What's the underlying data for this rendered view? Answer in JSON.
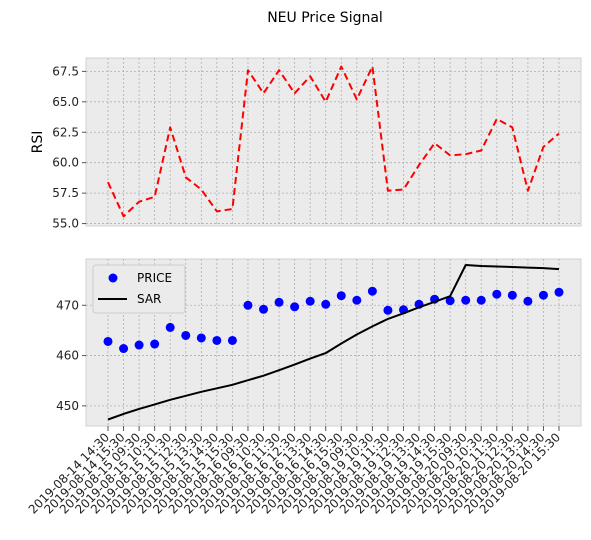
{
  "chart_data": {
    "type": "line",
    "title": "NEU Price Signal",
    "style": {
      "panel_bg": "#ebebeb",
      "grid_color": "#b0b0b0",
      "grid_style": "dotted"
    },
    "x_labels": [
      "2019-08-14 14:30",
      "2019-08-14 15:30",
      "2019-08-15 09:30",
      "2019-08-15 10:30",
      "2019-08-15 11:30",
      "2019-08-15 12:30",
      "2019-08-15 13:30",
      "2019-08-15 14:30",
      "2019-08-15 15:30",
      "2019-08-16 09:30",
      "2019-08-16 10:30",
      "2019-08-16 11:30",
      "2019-08-16 12:30",
      "2019-08-16 13:30",
      "2019-08-16 14:30",
      "2019-08-16 15:30",
      "2019-08-19 09:30",
      "2019-08-19 10:30",
      "2019-08-19 11:30",
      "2019-08-19 12:30",
      "2019-08-19 13:30",
      "2019-08-19 14:30",
      "2019-08-19 15:30",
      "2019-08-20 09:30",
      "2019-08-20 10:30",
      "2019-08-20 11:30",
      "2019-08-20 12:30",
      "2019-08-20 13:30",
      "2019-08-20 14:30",
      "2019-08-20 15:30"
    ],
    "panels": [
      {
        "ylabel": "RSI",
        "ylim": [
          54.8,
          68.6
        ],
        "yticks": [
          55.0,
          57.5,
          60.0,
          62.5,
          65.0,
          67.5
        ],
        "ytick_labels": [
          "55.0",
          "57.5",
          "60.0",
          "62.5",
          "65.0",
          "67.5"
        ],
        "grid": true,
        "legend": null,
        "series": [
          {
            "type": "line",
            "style": "dashed",
            "color": "#ff0000",
            "values": [
              58.4,
              55.6,
              56.8,
              57.2,
              62.9,
              58.8,
              57.8,
              56.0,
              56.2,
              67.6,
              65.7,
              67.6,
              65.7,
              67.1,
              65.0,
              67.9,
              65.2,
              67.9,
              57.7,
              57.8,
              59.8,
              61.6,
              60.6,
              60.7,
              61.0,
              63.6,
              62.9,
              57.7,
              61.3,
              62.4
            ]
          }
        ]
      },
      {
        "ylabel": "",
        "ylim": [
          446,
          479.2
        ],
        "yticks": [
          450,
          460,
          470
        ],
        "ytick_labels": [
          "450",
          "460",
          "470"
        ],
        "grid": true,
        "legend": "top-left",
        "series": [
          {
            "name": "PRICE",
            "type": "scatter",
            "color": "#0000ff",
            "values": [
              462.8,
              461.4,
              462.1,
              462.3,
              465.6,
              464.0,
              463.5,
              463.0,
              463.0,
              470.0,
              469.2,
              470.6,
              469.7,
              470.8,
              470.2,
              471.9,
              471.0,
              472.8,
              469.0,
              469.1,
              470.2,
              471.2,
              470.9,
              471.0,
              471.0,
              472.2,
              472.0,
              470.8,
              472.0,
              472.6
            ]
          },
          {
            "name": "SAR",
            "type": "line",
            "color": "#000000",
            "values": [
              447.3,
              448.4,
              449.4,
              450.3,
              451.2,
              452.0,
              452.8,
              453.5,
              454.2,
              455.1,
              456.0,
              457.1,
              458.2,
              459.4,
              460.5,
              462.4,
              464.2,
              465.8,
              467.3,
              468.4,
              469.6,
              470.7,
              471.8,
              478.0,
              477.8,
              477.7,
              477.6,
              477.5,
              477.4,
              477.2
            ]
          }
        ]
      }
    ]
  }
}
